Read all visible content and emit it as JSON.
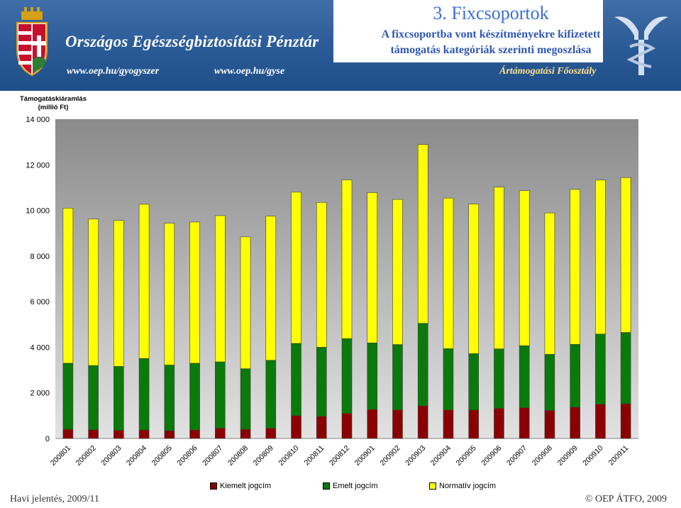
{
  "header": {
    "slide_title": "3. Fixcsoportok",
    "subtitle_line1": "A fixcsoportba vont készítményekre kifizetett",
    "subtitle_line2": "támogatás kategóriák szerinti megoszlása",
    "org_name": "Országos Egészségbiztosítási Pénztár",
    "url1": "www.oep.hu/gyogyszer",
    "url2": "www.oep.hu/gyse",
    "department": "Ártámogatási Főosztály",
    "emblem_icon": "coat-of-arms-icon",
    "logo_icon": "caduceus-logo-icon"
  },
  "footer": {
    "left": "Havi jelentés, 2009/11",
    "right": "© OEP ÁTFO, 2009"
  },
  "colors": {
    "banner": "#2a5a96",
    "plot_background": "#c0c0c0",
    "series": [
      "#8b0000",
      "#0a7a0a",
      "#ffff00"
    ]
  },
  "chart_data": {
    "type": "bar",
    "stacked": true,
    "ylabel_line1": "Támogatáskiáramlás",
    "ylabel_line2": "(millió Ft)",
    "ylim": [
      0,
      14000
    ],
    "yticks": [
      "0",
      "2 000",
      "4 000",
      "6 000",
      "8 000",
      "10 000",
      "12 000",
      "14 000"
    ],
    "grid": false,
    "legend_position": "bottom",
    "categories": [
      "200801",
      "200802",
      "200803",
      "200804",
      "200805",
      "200806",
      "200807",
      "200808",
      "200809",
      "200810",
      "200811",
      "200812",
      "200901",
      "200902",
      "200903",
      "200904",
      "200905",
      "200906",
      "200907",
      "200908",
      "200909",
      "200910",
      "200911"
    ],
    "series": [
      {
        "name": "Kiemelt jogcím",
        "values": [
          400,
          380,
          360,
          370,
          340,
          370,
          450,
          400,
          450,
          1000,
          970,
          1100,
          1270,
          1250,
          1430,
          1250,
          1250,
          1320,
          1350,
          1230,
          1370,
          1500,
          1520
        ]
      },
      {
        "name": "Emelt jogcím",
        "values": [
          2900,
          2820,
          2800,
          3140,
          2880,
          2930,
          2910,
          2660,
          2980,
          3170,
          3030,
          3280,
          2920,
          2870,
          3620,
          2690,
          2470,
          2610,
          2720,
          2460,
          2760,
          3080,
          3130
        ]
      },
      {
        "name": "Normatív jogcím",
        "values": [
          6800,
          6420,
          6400,
          6760,
          6220,
          6190,
          6410,
          5780,
          6320,
          6630,
          6350,
          6960,
          6590,
          6360,
          7840,
          6600,
          6560,
          7090,
          6800,
          6200,
          6790,
          6750,
          6790
        ]
      }
    ]
  }
}
